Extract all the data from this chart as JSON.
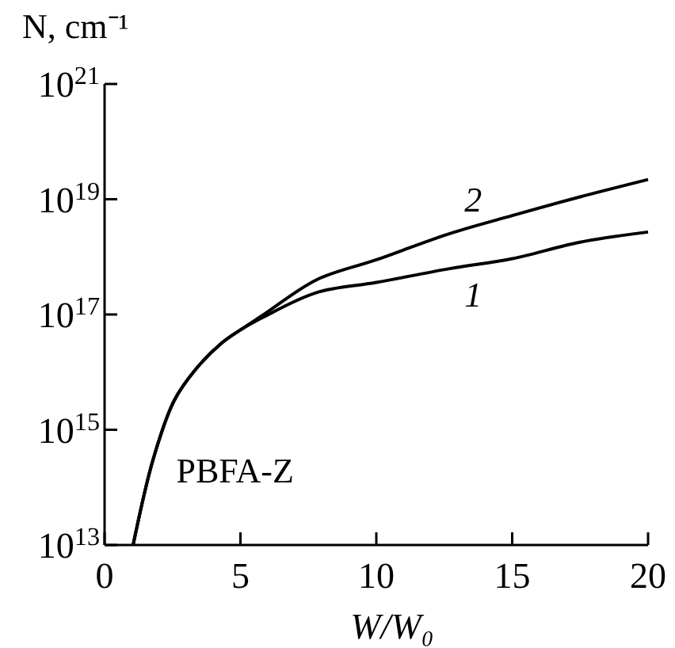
{
  "chart_data": {
    "type": "line",
    "xlabel": "W/W₀",
    "ylabel": "N, cm⁻¹",
    "log": "y",
    "xlim": [
      0,
      20
    ],
    "ylim": [
      10000000000000.0,
      1e+21
    ],
    "xticks": [
      0,
      5,
      10,
      15,
      20
    ],
    "yticks": [
      {
        "value": 10000000000000.0,
        "label": "10$^{13}$"
      },
      {
        "value": 1000000000000000.0,
        "label": "10$^{15}$"
      },
      {
        "value": 1e+17,
        "label": "10$^{17}$"
      },
      {
        "value": 1e+19,
        "label": "10$^{19}$"
      },
      {
        "value": 1e+21,
        "label": "10$^{21}$"
      }
    ],
    "grid": false,
    "marker": "none",
    "line_style": "solid",
    "annotations": [
      "PBFA-Z"
    ],
    "series": [
      {
        "name": "1",
        "color": "#000000",
        "x": [
          1.05,
          1.79,
          2.56,
          3.34,
          4.31,
          5.0,
          5.86,
          7.8,
          10,
          12.66,
          15,
          17.5,
          20
        ],
        "values": [
          10000000000000.0,
          310000000000000.0,
          3200000000000000.0,
          1.1e+16,
          3.2e+16,
          5.4e+16,
          9.1e+16,
          2.4e+17,
          3.6e+17,
          6.2e+17,
          9.3e+17,
          1.8e+18,
          2.7e+18
        ]
      },
      {
        "name": "2",
        "color": "#000000",
        "x": [
          1.05,
          1.79,
          2.56,
          3.34,
          4.31,
          5.0,
          5.86,
          7.8,
          10,
          12.66,
          15,
          17.5,
          20
        ],
        "values": [
          10000000000000.0,
          310000000000000.0,
          3200000000000000.0,
          1.1e+16,
          3.2e+16,
          5.4e+16,
          1e+17,
          4e+17,
          8.9e+17,
          2.5e+18,
          5.2e+18,
          1.1e+19,
          2.2e+19
        ]
      }
    ]
  }
}
